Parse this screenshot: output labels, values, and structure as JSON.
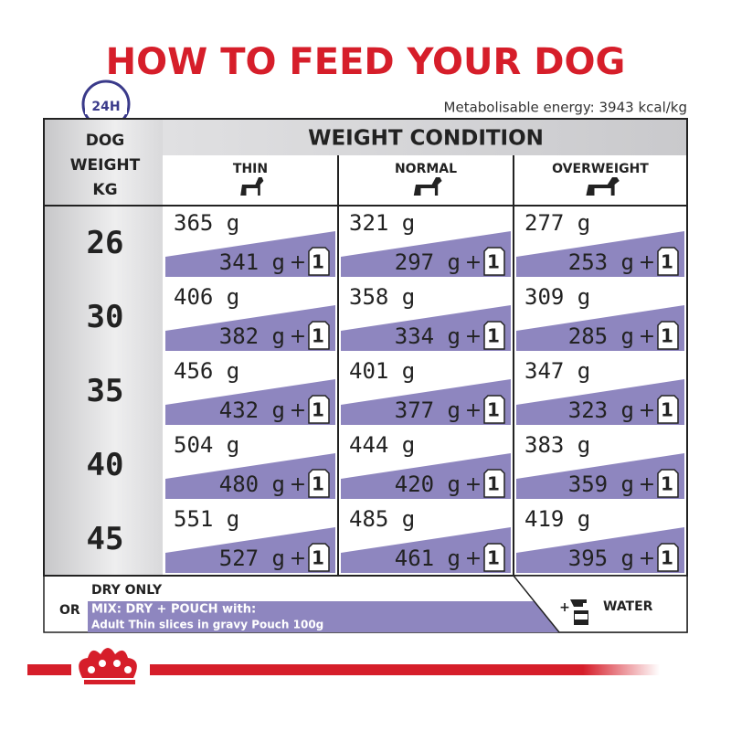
{
  "header": {
    "title": "HOW TO FEED YOUR DOG",
    "clock_label": "24H",
    "energy": "Metabolisable energy: 3943 kcal/kg"
  },
  "table": {
    "weight_header": [
      "DOG",
      "WEIGHT",
      "KG"
    ],
    "condition_header": "WEIGHT CONDITION",
    "columns": [
      "THIN",
      "NORMAL",
      "OVERWEIGHT"
    ],
    "plus": "+",
    "pouch": "1",
    "rows": [
      {
        "weight": "26",
        "cells": [
          {
            "dry": "365 g",
            "mix": "341 g"
          },
          {
            "dry": "321 g",
            "mix": "297 g"
          },
          {
            "dry": "277 g",
            "mix": "253 g"
          }
        ]
      },
      {
        "weight": "30",
        "cells": [
          {
            "dry": "406 g",
            "mix": "382 g"
          },
          {
            "dry": "358 g",
            "mix": "334 g"
          },
          {
            "dry": "309 g",
            "mix": "285 g"
          }
        ]
      },
      {
        "weight": "35",
        "cells": [
          {
            "dry": "456 g",
            "mix": "432 g"
          },
          {
            "dry": "401 g",
            "mix": "377 g"
          },
          {
            "dry": "347 g",
            "mix": "323 g"
          }
        ]
      },
      {
        "weight": "40",
        "cells": [
          {
            "dry": "504 g",
            "mix": "480 g"
          },
          {
            "dry": "444 g",
            "mix": "420 g"
          },
          {
            "dry": "383 g",
            "mix": "359 g"
          }
        ]
      },
      {
        "weight": "45",
        "cells": [
          {
            "dry": "551 g",
            "mix": "527 g"
          },
          {
            "dry": "485 g",
            "mix": "461 g"
          },
          {
            "dry": "419 g",
            "mix": "395 g"
          }
        ]
      }
    ]
  },
  "footer": {
    "dry_only": "DRY ONLY",
    "or": "OR",
    "mix": "MIX: DRY + POUCH with:",
    "pouch_name": "Adult Thin slices in gravy Pouch 100g",
    "water_plus": "+",
    "water": "WATER"
  }
}
